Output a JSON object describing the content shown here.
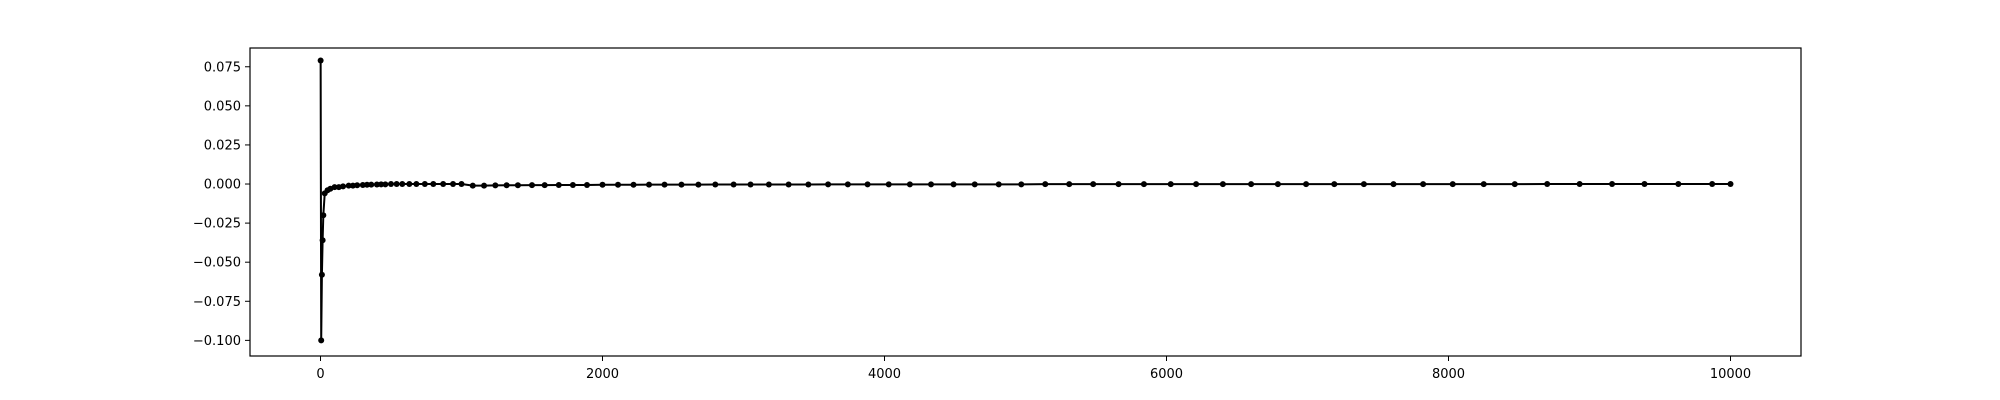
{
  "chart_data": {
    "type": "line",
    "title": "",
    "xlabel": "",
    "ylabel": "",
    "xlim": [
      -500,
      10500
    ],
    "ylim": [
      -0.11,
      0.087
    ],
    "x_ticks": [
      0,
      2000,
      4000,
      6000,
      8000,
      10000
    ],
    "x_tick_labels": [
      "0",
      "2000",
      "4000",
      "6000",
      "8000",
      "10000"
    ],
    "y_ticks": [
      0.075,
      0.05,
      0.025,
      0.0,
      -0.025,
      -0.05,
      -0.075,
      -0.1
    ],
    "y_tick_labels": [
      "0.075",
      "0.050",
      "0.025",
      "0.000",
      "−0.025",
      "−0.050",
      "−0.075",
      "−0.100"
    ],
    "grid": false,
    "legend": "none",
    "line_color": "#000000",
    "marker": "circle",
    "series": [
      {
        "x": [
          1,
          5,
          10,
          15,
          20,
          30,
          50,
          70,
          100,
          130,
          160,
          200,
          230,
          260,
          300,
          330,
          360,
          400,
          430,
          460,
          500,
          540,
          580,
          630,
          680,
          740,
          800,
          870,
          940,
          1000,
          1080,
          1160,
          1240,
          1320,
          1400,
          1500,
          1590,
          1690,
          1790,
          1890,
          2000,
          2110,
          2220,
          2330,
          2440,
          2560,
          2680,
          2800,
          2930,
          3050,
          3180,
          3320,
          3460,
          3600,
          3740,
          3880,
          4030,
          4180,
          4330,
          4490,
          4640,
          4810,
          4970,
          5140,
          5310,
          5480,
          5660,
          5840,
          6030,
          6210,
          6400,
          6600,
          6790,
          6990,
          7190,
          7400,
          7610,
          7820,
          8030,
          8250,
          8470,
          8700,
          8930,
          9160,
          9390,
          9630,
          9870,
          10000
        ],
        "y": [
          0.079,
          -0.1,
          -0.058,
          -0.036,
          -0.02,
          -0.006,
          -0.004,
          -0.003,
          -0.002,
          -0.002,
          -0.0015,
          -0.001,
          -0.001,
          -0.0008,
          -0.0006,
          -0.0005,
          -0.0004,
          -0.0003,
          -0.0002,
          -0.0002,
          0.0,
          0.0,
          0.0,
          0.0,
          0.0,
          0.0,
          0.0,
          0.0,
          0.0,
          0.0,
          -0.001,
          -0.001,
          -0.0009,
          -0.0008,
          -0.0008,
          -0.0007,
          -0.0007,
          -0.0006,
          -0.0006,
          -0.0006,
          -0.0005,
          -0.0005,
          -0.0005,
          -0.0004,
          -0.0004,
          -0.0004,
          -0.0004,
          -0.0003,
          -0.0003,
          -0.0003,
          -0.0003,
          -0.0003,
          -0.0003,
          -0.0002,
          -0.0002,
          -0.0002,
          -0.0002,
          -0.0002,
          -0.0002,
          -0.0002,
          -0.0002,
          -0.0002,
          -0.0002,
          -0.0001,
          -0.0001,
          -0.0001,
          -0.0001,
          -0.0001,
          -0.0001,
          -0.0001,
          -0.0001,
          -0.0001,
          -0.0001,
          -0.0001,
          -0.0001,
          -0.0001,
          -0.0001,
          -0.0001,
          -0.0001,
          -0.0001,
          -0.0001,
          0.0,
          0.0,
          0.0,
          0.0,
          0.0,
          0.0,
          0.0
        ]
      }
    ]
  }
}
